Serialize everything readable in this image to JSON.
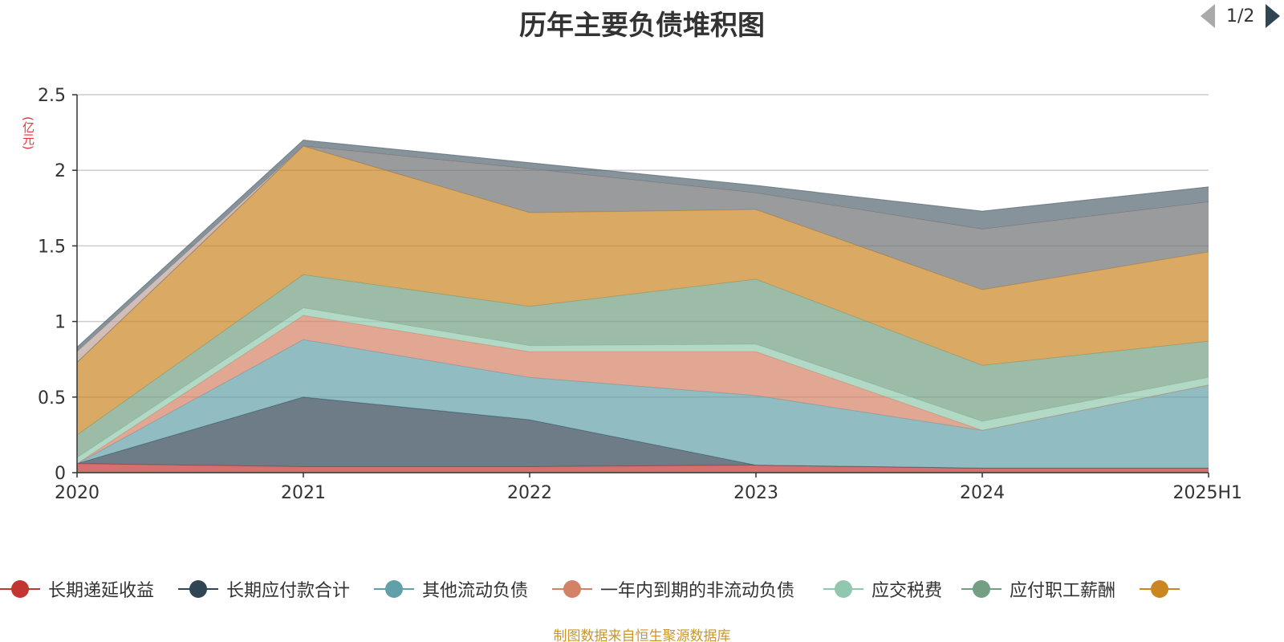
{
  "chart_data": {
    "type": "area",
    "stacked": true,
    "title": "历年主要负债堆积图",
    "y_unit": "(亿元)",
    "categories": [
      "2020",
      "2021",
      "2022",
      "2023",
      "2024",
      "2025H1"
    ],
    "ylim": [
      0,
      2.5
    ],
    "y_ticks": [
      "0",
      "0.5",
      "1",
      "1.5",
      "2",
      "2.5"
    ],
    "grid": true,
    "legend_position": "bottom",
    "legend_page": "1/2",
    "source_note": "制图数据来自恒生聚源数据库",
    "series": [
      {
        "name": "长期递延收益",
        "color": "#c23531",
        "values": [
          0.06,
          0.04,
          0.04,
          0.05,
          0.03,
          0.03
        ]
      },
      {
        "name": "长期应付款合计",
        "color": "#2f4554",
        "values": [
          0.0,
          0.46,
          0.31,
          0.0,
          0.0,
          0.0
        ]
      },
      {
        "name": "其他流动负债",
        "color": "#61a0a8",
        "values": [
          0.0,
          0.38,
          0.28,
          0.46,
          0.25,
          0.55
        ]
      },
      {
        "name": "一年内到期的非流动负债",
        "color": "#d48265",
        "values": [
          0.0,
          0.16,
          0.17,
          0.29,
          0.0,
          0.0
        ]
      },
      {
        "name": "应交税费",
        "color": "#91c7ae",
        "values": [
          0.04,
          0.05,
          0.04,
          0.05,
          0.06,
          0.05
        ]
      },
      {
        "name": "应付职工薪酬",
        "color": "#749f83",
        "values": [
          0.15,
          0.22,
          0.26,
          0.43,
          0.37,
          0.24
        ]
      },
      {
        "name": "",
        "color": "#ca8622",
        "values": [
          0.48,
          0.85,
          0.62,
          0.46,
          0.5,
          0.59
        ]
      },
      {
        "name": "",
        "color": "#6e7074",
        "values": [
          0.0,
          0.0,
          0.29,
          0.11,
          0.4,
          0.33
        ]
      },
      {
        "name": "",
        "color": "#bda29a",
        "values": [
          0.07,
          0.0,
          0.0,
          0.0,
          0.0,
          0.0
        ]
      },
      {
        "name": "",
        "color": "#546570",
        "values": [
          0.03,
          0.04,
          0.04,
          0.05,
          0.12,
          0.1
        ]
      }
    ]
  }
}
